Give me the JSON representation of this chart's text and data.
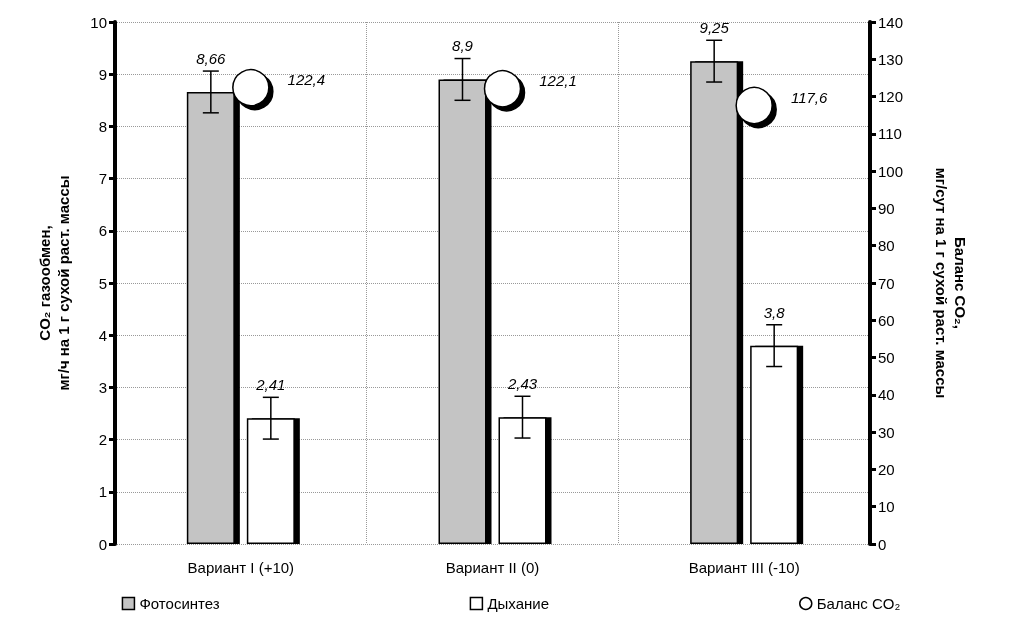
{
  "chart_data": {
    "type": "bar",
    "ylabel": "CO₂ газообмен,\nмг/ч на 1 г сухой раст. массы",
    "y2label": "Баланс CO₂,\nмг/сут на 1 г сухой раст. массы",
    "categories": [
      "Вариант I (+10)",
      "Вариант II (0)",
      "Вариант III (-10)"
    ],
    "series": [
      {
        "name": "Фотосинтез",
        "color": "#c4c4c4",
        "values": [
          8.66,
          8.9,
          9.25
        ],
        "value_labels": [
          "8,66",
          "8,9",
          "9,25"
        ],
        "errors": [
          0.4,
          0.4,
          0.4
        ]
      },
      {
        "name": "Дыхание",
        "color": "#ffffff",
        "values": [
          2.41,
          2.43,
          3.8
        ],
        "value_labels": [
          "2,41",
          "2,43",
          "3,8"
        ],
        "errors": [
          0.4,
          0.4,
          0.4
        ]
      },
      {
        "name": "Баланс CO₂",
        "type": "scatter",
        "axis": "y2",
        "color": "#ffffff",
        "values": [
          122.4,
          122.1,
          117.6
        ],
        "value_labels": [
          "122,4",
          "122,1",
          "117,6"
        ]
      }
    ],
    "ylim": [
      0,
      10
    ],
    "yticks": [
      0,
      1,
      2,
      3,
      4,
      5,
      6,
      7,
      8,
      9,
      10
    ],
    "y2lim": [
      0,
      140
    ],
    "y2ticks": [
      0,
      10,
      20,
      30,
      40,
      50,
      60,
      70,
      80,
      90,
      100,
      110,
      120,
      130,
      140
    ],
    "grid": true,
    "legend": "bottom",
    "marker": "circle"
  }
}
